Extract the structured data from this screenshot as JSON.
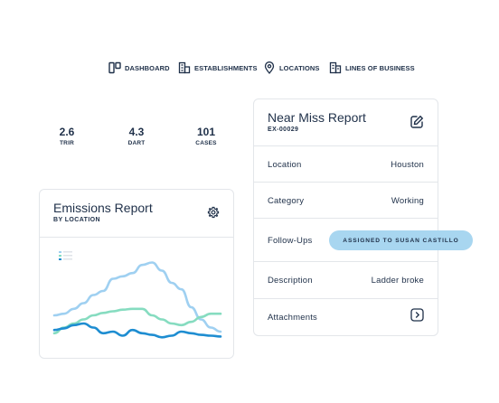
{
  "nav": {
    "items": [
      {
        "label": "DASHBOARD",
        "icon": "dashboard-icon"
      },
      {
        "label": "ESTABLISHMENTS",
        "icon": "building-icon"
      },
      {
        "label": "LOCATIONS",
        "icon": "map-pin-icon"
      },
      {
        "label": "LINES OF BUSINESS",
        "icon": "business-lines-icon"
      }
    ]
  },
  "stats": [
    {
      "value": "2.6",
      "label": "TRIR"
    },
    {
      "value": "4.3",
      "label": "DART"
    },
    {
      "value": "101",
      "label": "CASES"
    }
  ],
  "emissions": {
    "title": "Emissions Report",
    "subtitle": "BY LOCATION",
    "settings_icon": "gear-icon"
  },
  "chart_data": {
    "type": "line",
    "title": "",
    "xlabel": "",
    "ylabel": "",
    "grid": false,
    "series": [
      {
        "color": "#9fd0f1",
        "values": [
          30,
          32,
          38,
          45,
          55,
          60,
          75,
          78,
          82,
          92,
          95,
          85,
          70,
          62,
          40,
          25,
          15,
          10
        ]
      },
      {
        "color": "#86dcc0",
        "values": [
          8,
          15,
          20,
          25,
          30,
          33,
          35,
          37,
          38,
          38,
          30,
          25,
          20,
          18,
          22,
          28,
          32,
          32
        ]
      },
      {
        "color": "#1e8dd1",
        "values": [
          12,
          14,
          18,
          20,
          15,
          8,
          10,
          5,
          12,
          8,
          6,
          3,
          5,
          10,
          8,
          6,
          5,
          4
        ]
      }
    ],
    "legend": [
      "",
      "",
      ""
    ],
    "legend_position": "top-left",
    "colors": {
      "series1": "#9fd0f1",
      "series2": "#86dcc0",
      "series3": "#1e8dd1"
    }
  },
  "near_miss": {
    "title": "Near Miss Report",
    "id": "EX-00029",
    "edit_icon": "edit-icon",
    "rows": [
      {
        "label": "Location",
        "value": "Houston"
      },
      {
        "label": "Category",
        "value": "Working"
      },
      {
        "label": "Follow-Ups",
        "value": ""
      },
      {
        "label": "Description",
        "value": "Ladder broke"
      },
      {
        "label": "Attachments",
        "value": ""
      }
    ],
    "assignment_badge": "ASSIGNED TO SUSAN CASTILLO",
    "attachments_icon": "chevron-right-icon"
  },
  "colors": {
    "text": "#1f3049",
    "border": "#e3e6ea",
    "badge_bg": "#a8d6f0"
  }
}
